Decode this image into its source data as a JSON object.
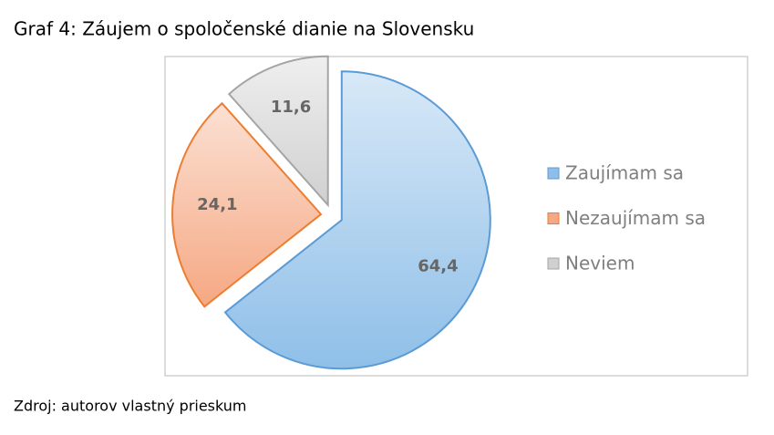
{
  "chart_data": {
    "type": "pie",
    "title": "Graf 4: Záujem o spoločenské dianie na Slovensku",
    "categories": [
      "Zaujímam sa",
      "Nezaujímam sa",
      "Neviem"
    ],
    "values": [
      64.4,
      24.1,
      11.6
    ],
    "value_labels": [
      "64,4",
      "24,1",
      "11,6"
    ],
    "colors": [
      "#8fbfe8",
      "#f5a883",
      "#d0d0d0"
    ],
    "edge_colors": [
      "#5b9bd5",
      "#ed7d31",
      "#a5a5a5"
    ],
    "legend": "right",
    "source": "Zdroj: autorov vlastný prieskum"
  }
}
